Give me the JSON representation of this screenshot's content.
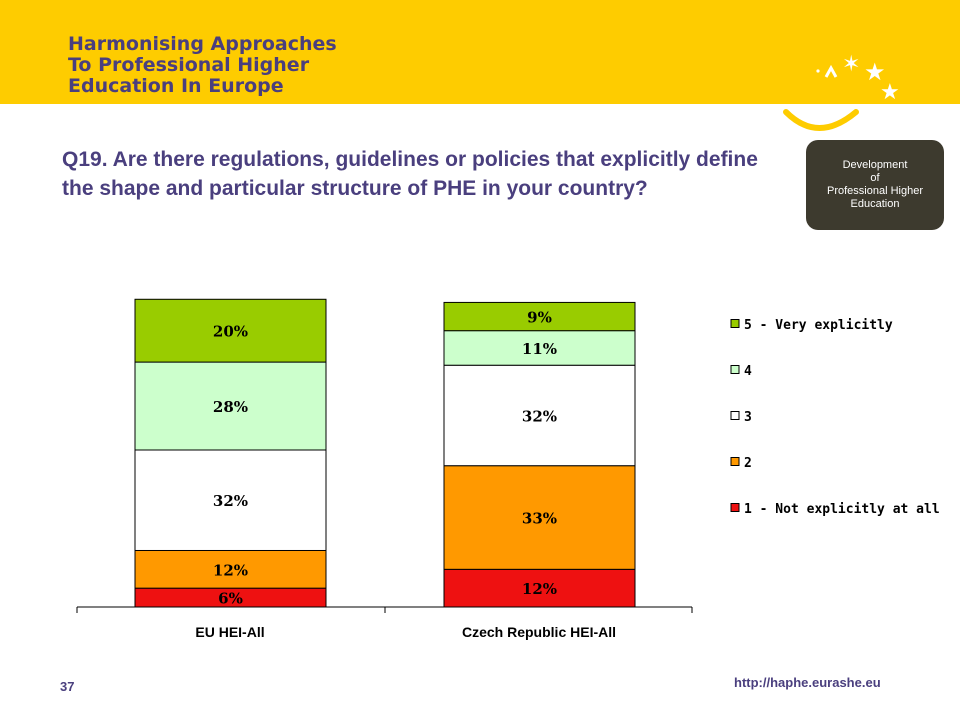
{
  "header": {
    "title_lines": [
      "Harmonising Approaches",
      "To Professional Higher",
      "Education In Europe"
    ]
  },
  "question": "Q19. Are there regulations, guidelines or policies that explicitly define the shape and particular structure of PHE in your country?",
  "badge": {
    "text": "Development\nof\nProfessional Higher\nEducation"
  },
  "colors": {
    "banner": "#fecc00",
    "title_text": "#4a3f7e",
    "badge_bg": "#3d3a2e"
  },
  "chart_data": {
    "type": "bar",
    "stacked": true,
    "categories": [
      "EU HEI-All",
      "Czech Republic HEI-All"
    ],
    "series": [
      {
        "name": "1 - Not explicitly at all",
        "color": "#ee1111",
        "values": [
          6,
          12
        ],
        "labels": [
          "6%",
          "12%"
        ]
      },
      {
        "name": "2",
        "color": "#ff9900",
        "values": [
          12,
          33
        ],
        "labels": [
          "12%",
          "33%"
        ]
      },
      {
        "name": "3",
        "color": "#ffffff",
        "values": [
          32,
          32
        ],
        "labels": [
          "32%",
          "32%"
        ]
      },
      {
        "name": "4",
        "color": "#ccffcc",
        "values": [
          28,
          11
        ],
        "labels": [
          "28%",
          "11%"
        ]
      },
      {
        "name": "5 - Very explicitly",
        "color": "#99cc00",
        "values": [
          20,
          9
        ],
        "labels": [
          "20%",
          "9%"
        ]
      }
    ],
    "ylim": [
      0,
      100
    ],
    "legend": "right",
    "grid": false
  },
  "footer": {
    "page_number": "37",
    "url": "http://haphe.eurashe.eu"
  }
}
